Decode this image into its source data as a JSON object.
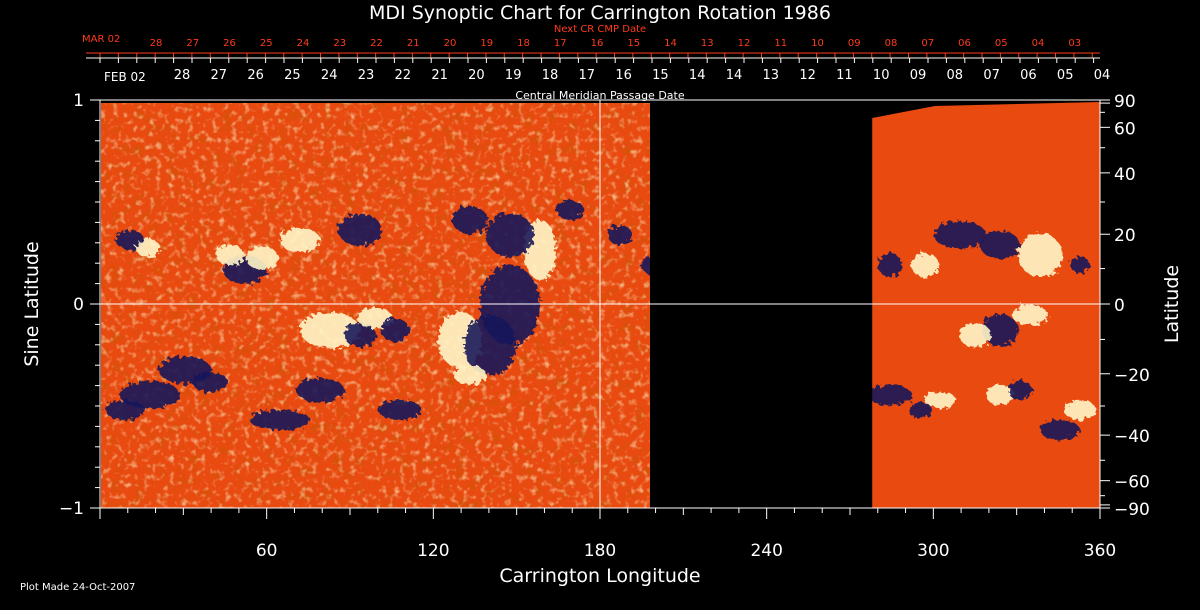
{
  "chart_data": {
    "type": "heatmap",
    "title": "MDI Synoptic Chart for Carrington Rotation 1986",
    "xlabel": "Carrington Longitude",
    "ylabel_left": "Sine Latitude",
    "ylabel_right": "Latitude",
    "xlim": [
      0,
      360
    ],
    "ylim": [
      -1,
      1
    ],
    "x_ticks": [
      60,
      120,
      180,
      240,
      300,
      360
    ],
    "left_y_ticks": [
      {
        "value": 1,
        "label": "1"
      },
      {
        "value": 0,
        "label": "0"
      },
      {
        "value": -1,
        "label": "−1"
      }
    ],
    "right_y_ticks": [
      90,
      60,
      40,
      20,
      0,
      -20,
      -40,
      -60,
      -90
    ],
    "grid_lines": {
      "longitude": 180,
      "sine_latitude": 0
    },
    "data_gap_longitude": [
      207,
      278
    ],
    "top_axis": {
      "label": "Central Meridian Passage Date",
      "start_label": "FEB 02",
      "dates": [
        "28",
        "27",
        "26",
        "25",
        "24",
        "23",
        "22",
        "21",
        "20",
        "19",
        "18",
        "17",
        "16",
        "15",
        "14",
        "14",
        "13",
        "12",
        "11",
        "10",
        "09",
        "08",
        "07",
        "06",
        "05",
        "04"
      ]
    },
    "next_cr_axis": {
      "label": "Next CR CMP Date",
      "start_label": "MAR 02",
      "dates": [
        "28",
        "27",
        "26",
        "25",
        "24",
        "23",
        "22",
        "21",
        "20",
        "19",
        "18",
        "17",
        "16",
        "15",
        "14",
        "13",
        "12",
        "11",
        "10",
        "09",
        "08",
        "07",
        "06",
        "05",
        "04",
        "03"
      ]
    },
    "footer": "Plot Made 24-Oct-2007",
    "colors": {
      "background": "#000000",
      "field_base": "#e84a10",
      "positive_polarity": "#fff6c8",
      "negative_polarity": "#1a1a5a",
      "next_cr_text": "#ff3b1a",
      "axis": "#ffffff"
    }
  }
}
